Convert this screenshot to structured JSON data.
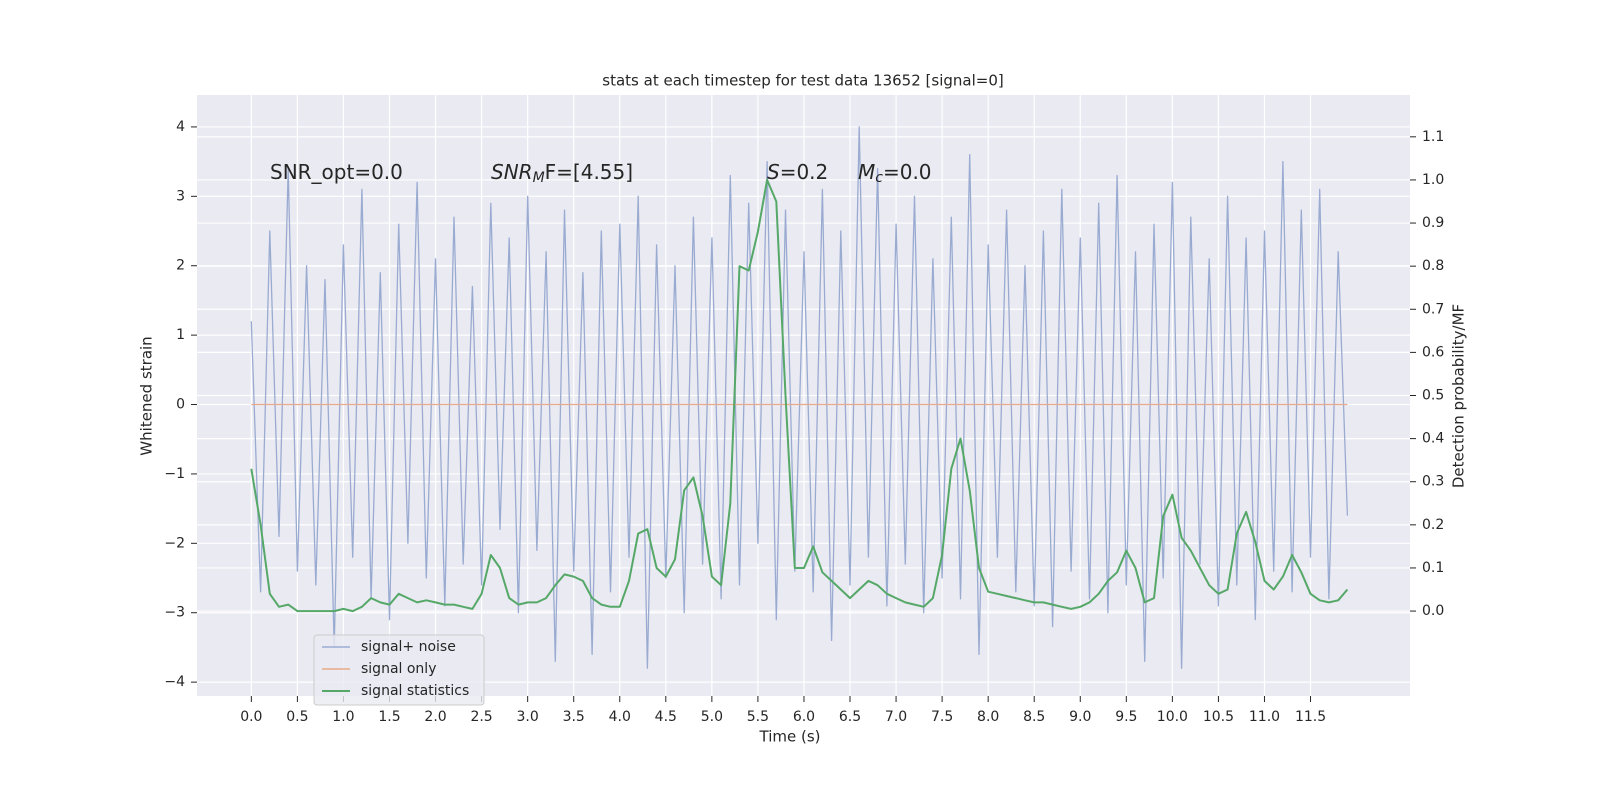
{
  "chart_data": {
    "type": "line",
    "title": "stats at each timestep for test data 13652 [signal=0]",
    "xlabel": "Time (s)",
    "ylabel": "Whitened strain",
    "y2label": "Detection probability/MF",
    "annotations": [
      {
        "text": "SNR_opt=0.0"
      },
      {
        "italic": "SNR",
        "sub": "M",
        "text": "F=[4.55]"
      },
      {
        "italic": "S",
        "text": "=0.2"
      },
      {
        "italic": "M",
        "sub": "c",
        "text": "=0.0"
      }
    ],
    "x": [
      0,
      0.1,
      0.2,
      0.3,
      0.4,
      0.5,
      0.6,
      0.7,
      0.8,
      0.9,
      1,
      1.1,
      1.2,
      1.3,
      1.4,
      1.5,
      1.6,
      1.7,
      1.8,
      1.9,
      2,
      2.1,
      2.2,
      2.3,
      2.4,
      2.5,
      2.6,
      2.7,
      2.8,
      2.9,
      3,
      3.1,
      3.2,
      3.3,
      3.4,
      3.5,
      3.6,
      3.7,
      3.8,
      3.9,
      4,
      4.1,
      4.2,
      4.3,
      4.4,
      4.5,
      4.6,
      4.7,
      4.8,
      4.9,
      5,
      5.1,
      5.2,
      5.3,
      5.4,
      5.5,
      5.6,
      5.7,
      5.8,
      5.9,
      6,
      6.1,
      6.2,
      6.3,
      6.4,
      6.5,
      6.6,
      6.7,
      6.8,
      6.9,
      7,
      7.1,
      7.2,
      7.3,
      7.4,
      7.5,
      7.6,
      7.7,
      7.8,
      7.9,
      8,
      8.1,
      8.2,
      8.3,
      8.4,
      8.5,
      8.6,
      8.7,
      8.8,
      8.9,
      9,
      9.1,
      9.2,
      9.3,
      9.4,
      9.5,
      9.6,
      9.7,
      9.8,
      9.9,
      10,
      10.1,
      10.2,
      10.3,
      10.4,
      10.5,
      10.6,
      10.7,
      10.8,
      10.9,
      11,
      11.1,
      11.2,
      11.3,
      11.4,
      11.5,
      11.6,
      11.7,
      11.8,
      11.9
    ],
    "series": [
      {
        "name": "signal+ noise",
        "color": "#9aabd1",
        "values": [
          1.2,
          -2.7,
          2.5,
          -1.9,
          3.4,
          -2.4,
          2.0,
          -2.6,
          1.8,
          -3.5,
          2.3,
          -2.2,
          3.1,
          -2.8,
          1.9,
          -3.1,
          2.6,
          -2.0,
          3.2,
          -2.5,
          2.1,
          -2.9,
          2.7,
          -2.3,
          1.7,
          -2.6,
          2.9,
          -1.8,
          2.4,
          -3.0,
          3.0,
          -2.1,
          2.2,
          -3.7,
          2.8,
          -2.4,
          1.9,
          -3.6,
          2.5,
          -2.7,
          2.6,
          -2.2,
          3.0,
          -3.8,
          2.3,
          -2.5,
          2.0,
          -3.0,
          2.7,
          -2.3,
          2.4,
          -2.8,
          3.3,
          -2.6,
          2.9,
          -2.0,
          3.5,
          -3.1,
          2.8,
          -2.4,
          2.2,
          -2.7,
          3.1,
          -3.4,
          2.5,
          -2.6,
          4.0,
          -2.2,
          3.4,
          -2.9,
          2.6,
          -2.3,
          3.0,
          -3.0,
          2.1,
          -2.5,
          2.7,
          -2.8,
          3.6,
          -3.6,
          2.3,
          -2.2,
          2.8,
          -2.7,
          2.0,
          -2.9,
          2.5,
          -3.2,
          3.1,
          -2.4,
          2.4,
          -2.8,
          2.9,
          -3.0,
          3.3,
          -2.6,
          2.2,
          -3.7,
          2.6,
          -2.5,
          3.2,
          -3.8,
          2.7,
          -2.3,
          2.1,
          -2.9,
          3.0,
          -2.6,
          2.4,
          -3.1,
          2.5,
          -2.4,
          3.5,
          -2.7,
          2.8,
          -2.2,
          3.1,
          -2.8,
          2.2,
          -1.6
        ]
      },
      {
        "name": "signal only",
        "color": "#e8a98a",
        "values": [
          0,
          0,
          0,
          0,
          0,
          0,
          0,
          0,
          0,
          0,
          0,
          0,
          0,
          0,
          0,
          0,
          0,
          0,
          0,
          0,
          0,
          0,
          0,
          0,
          0,
          0,
          0,
          0,
          0,
          0,
          0,
          0,
          0,
          0,
          0,
          0,
          0,
          0,
          0,
          0,
          0,
          0,
          0,
          0,
          0,
          0,
          0,
          0,
          0,
          0,
          0,
          0,
          0,
          0,
          0,
          0,
          0,
          0,
          0,
          0,
          0,
          0,
          0,
          0,
          0,
          0,
          0,
          0,
          0,
          0,
          0,
          0,
          0,
          0,
          0,
          0,
          0,
          0,
          0,
          0,
          0,
          0,
          0,
          0,
          0,
          0,
          0,
          0,
          0,
          0,
          0,
          0,
          0,
          0,
          0,
          0,
          0,
          0,
          0,
          0,
          0,
          0,
          0,
          0,
          0,
          0,
          0,
          0,
          0,
          0,
          0,
          0,
          0,
          0,
          0,
          0,
          0,
          0,
          0,
          0
        ]
      },
      {
        "name": "signal statistics",
        "color": "#55a868",
        "axis": "y2",
        "values": [
          0.33,
          0.2,
          0.04,
          0.01,
          0.015,
          0.0,
          0.0,
          0.0,
          0.0,
          0.0,
          0.005,
          0.0,
          0.01,
          0.03,
          0.02,
          0.015,
          0.04,
          0.03,
          0.02,
          0.025,
          0.02,
          0.015,
          0.015,
          0.01,
          0.005,
          0.04,
          0.13,
          0.1,
          0.03,
          0.015,
          0.02,
          0.02,
          0.03,
          0.06,
          0.085,
          0.08,
          0.07,
          0.03,
          0.015,
          0.01,
          0.01,
          0.07,
          0.18,
          0.19,
          0.1,
          0.08,
          0.12,
          0.28,
          0.31,
          0.22,
          0.08,
          0.06,
          0.25,
          0.8,
          0.79,
          0.88,
          1.0,
          0.95,
          0.5,
          0.1,
          0.1,
          0.15,
          0.09,
          0.07,
          0.05,
          0.03,
          0.05,
          0.07,
          0.06,
          0.04,
          0.03,
          0.02,
          0.015,
          0.01,
          0.03,
          0.13,
          0.33,
          0.4,
          0.28,
          0.1,
          0.045,
          0.04,
          0.035,
          0.03,
          0.025,
          0.02,
          0.02,
          0.015,
          0.01,
          0.005,
          0.01,
          0.02,
          0.04,
          0.07,
          0.09,
          0.14,
          0.1,
          0.02,
          0.03,
          0.22,
          0.27,
          0.17,
          0.14,
          0.1,
          0.06,
          0.04,
          0.05,
          0.18,
          0.23,
          0.16,
          0.07,
          0.05,
          0.08,
          0.13,
          0.09,
          0.04,
          0.025,
          0.02,
          0.025,
          0.05
        ]
      }
    ],
    "xlim": [
      -0.59,
      12.58
    ],
    "xticks": [
      {
        "value": 0,
        "label": "0.0"
      },
      0.5,
      {
        "value": 1,
        "label": "1.0"
      },
      1.5,
      {
        "value": 2,
        "label": "2.0"
      },
      2.5,
      {
        "value": 3,
        "label": "3.0"
      },
      3.5,
      {
        "value": 4,
        "label": "4.0"
      },
      4.5,
      {
        "value": 5,
        "label": "5.0"
      },
      5.5,
      {
        "value": 6,
        "label": "6.0"
      },
      6.5,
      {
        "value": 7,
        "label": "7.0"
      },
      7.5,
      {
        "value": 8,
        "label": "8.0"
      },
      8.5,
      {
        "value": 9,
        "label": "9.0"
      },
      9.5,
      {
        "value": 10,
        "label": "10.0"
      },
      10.5,
      {
        "value": 11,
        "label": "11.0"
      },
      11.5
    ],
    "ylim": [
      -4.2,
      4.46
    ],
    "yticks": [
      {
        "value": -4,
        "label": "−4"
      },
      {
        "value": -3,
        "label": "−3"
      },
      {
        "value": -2,
        "label": "−2"
      },
      {
        "value": -1,
        "label": "−1"
      },
      0,
      1,
      2,
      3,
      4
    ],
    "y2lim": [
      -0.197,
      1.197
    ],
    "y2ticks": [
      {
        "value": 0,
        "label": "0.0"
      },
      0.1,
      0.2,
      0.3,
      0.4,
      0.5,
      0.6,
      0.7,
      0.8,
      0.9,
      {
        "value": 1,
        "label": "1.0"
      },
      1.1
    ],
    "grid": true,
    "legend": "lower left"
  }
}
